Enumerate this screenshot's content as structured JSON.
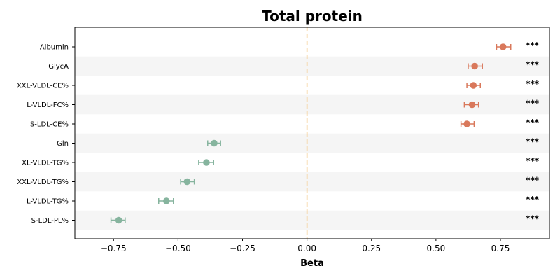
{
  "chart_data": {
    "type": "scatter",
    "subtype": "forest-plot",
    "title": "Total protein",
    "xlabel": "Beta",
    "ylabel": "",
    "xlim": [
      -0.9,
      0.94
    ],
    "xticks": [
      -0.75,
      -0.5,
      -0.25,
      0.0,
      0.25,
      0.5,
      0.75
    ],
    "xtick_labels": [
      "−0.75",
      "−0.50",
      "−0.25",
      "0.00",
      "0.25",
      "0.50",
      "0.75"
    ],
    "reference_line": {
      "x": 0.0,
      "style": "dashed",
      "color": "#f5c98a"
    },
    "grid": false,
    "row_banding": true,
    "colors": {
      "positive": "#d9785b",
      "negative": "#86b49e",
      "band": "#f5f5f5"
    },
    "points": [
      {
        "label": "Albumin",
        "beta": 0.76,
        "ci": [
          0.735,
          0.79
        ],
        "sig": "***"
      },
      {
        "label": "GlycA",
        "beta": 0.65,
        "ci": [
          0.625,
          0.68
        ],
        "sig": "***"
      },
      {
        "label": "XXL-VLDL-CE%",
        "beta": 0.645,
        "ci": [
          0.62,
          0.672
        ],
        "sig": "***"
      },
      {
        "label": "L-VLDL-FC%",
        "beta": 0.64,
        "ci": [
          0.61,
          0.665
        ],
        "sig": "***"
      },
      {
        "label": "S-LDL-CE%",
        "beta": 0.62,
        "ci": [
          0.597,
          0.648
        ],
        "sig": "***"
      },
      {
        "label": "Gln",
        "beta": -0.36,
        "ci": [
          -0.385,
          -0.335
        ],
        "sig": "***"
      },
      {
        "label": "XL-VLDL-TG%",
        "beta": -0.39,
        "ci": [
          -0.42,
          -0.362
        ],
        "sig": "***"
      },
      {
        "label": "XXL-VLDL-TG%",
        "beta": -0.465,
        "ci": [
          -0.49,
          -0.437
        ],
        "sig": "***"
      },
      {
        "label": "L-VLDL-TG%",
        "beta": -0.545,
        "ci": [
          -0.575,
          -0.518
        ],
        "sig": "***"
      },
      {
        "label": "S-LDL-PL%",
        "beta": -0.73,
        "ci": [
          -0.76,
          -0.705
        ],
        "sig": "***"
      }
    ]
  }
}
